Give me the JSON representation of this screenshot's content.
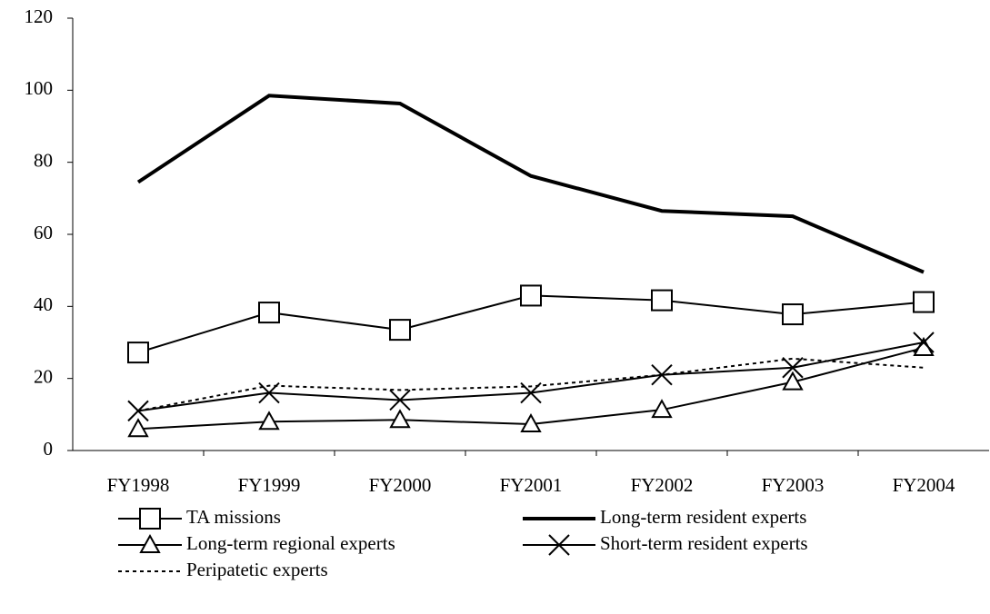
{
  "chart_data": {
    "type": "line",
    "categories": [
      "FY1998",
      "FY1999",
      "FY2000",
      "FY2001",
      "FY2002",
      "FY2003",
      "FY2004"
    ],
    "series": [
      {
        "name": "TA missions",
        "color": "#000000",
        "line_width": 2,
        "marker": "square",
        "dash": "solid",
        "values": [
          27.2,
          38.3,
          33.5,
          43,
          41.7,
          37.8,
          41.2
        ]
      },
      {
        "name": "Long-term resident experts",
        "color": "#000000",
        "line_width": 4,
        "marker": "none",
        "dash": "solid",
        "values": [
          74.5,
          98.5,
          96.3,
          76.2,
          66.5,
          65,
          49.5
        ]
      },
      {
        "name": "Long-term regional experts",
        "color": "#000000",
        "line_width": 2,
        "marker": "triangle",
        "dash": "solid",
        "values": [
          6,
          8,
          8.5,
          7.3,
          11.3,
          19,
          28.5
        ]
      },
      {
        "name": "Short-term resident experts",
        "color": "#000000",
        "line_width": 2,
        "marker": "x",
        "dash": "solid",
        "values": [
          11,
          16,
          14,
          16,
          21,
          23,
          30
        ]
      },
      {
        "name": "Peripatetic experts",
        "color": "#000000",
        "line_width": 2,
        "marker": "none",
        "dash": "dotted",
        "values": [
          11,
          18,
          16.8,
          17.8,
          21,
          25.5,
          23
        ]
      }
    ],
    "ylim": [
      0,
      120
    ],
    "yticks": [
      0,
      20,
      40,
      60,
      80,
      100,
      120
    ],
    "grid": false,
    "legend": "bottom"
  }
}
